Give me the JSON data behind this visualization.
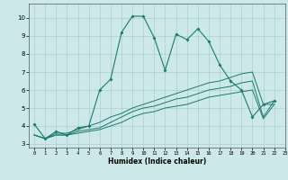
{
  "title": "",
  "xlabel": "Humidex (Indice chaleur)",
  "background_color": "#cce8e8",
  "grid_color": "#aacfcf",
  "line_color": "#1a7a6e",
  "xlim": [
    -0.5,
    23
  ],
  "ylim": [
    2.8,
    10.8
  ],
  "xticks": [
    0,
    1,
    2,
    3,
    4,
    5,
    6,
    7,
    8,
    9,
    10,
    11,
    12,
    13,
    14,
    15,
    16,
    17,
    18,
    19,
    20,
    21,
    22,
    23
  ],
  "yticks": [
    3,
    4,
    5,
    6,
    7,
    8,
    9,
    10
  ],
  "series1_x": [
    0,
    1,
    2,
    3,
    4,
    5,
    6,
    7,
    8,
    9,
    10,
    11,
    12,
    13,
    14,
    15,
    16,
    17,
    18,
    19,
    20,
    21,
    22
  ],
  "series1_y": [
    4.1,
    3.3,
    3.7,
    3.5,
    3.9,
    4.0,
    6.0,
    6.6,
    9.2,
    10.1,
    10.1,
    8.9,
    7.1,
    9.1,
    8.8,
    9.4,
    8.7,
    7.4,
    6.5,
    6.0,
    4.5,
    5.2,
    5.4
  ],
  "series2_x": [
    0,
    1,
    2,
    3,
    4,
    5,
    6,
    7,
    8,
    9,
    10,
    11,
    12,
    13,
    14,
    15,
    16,
    17,
    18,
    19,
    20,
    21,
    22
  ],
  "series2_y": [
    3.5,
    3.3,
    3.6,
    3.6,
    3.8,
    4.0,
    4.2,
    4.5,
    4.7,
    5.0,
    5.2,
    5.4,
    5.6,
    5.8,
    6.0,
    6.2,
    6.4,
    6.5,
    6.7,
    6.9,
    7.0,
    5.2,
    5.2
  ],
  "series3_x": [
    0,
    1,
    2,
    3,
    4,
    5,
    6,
    7,
    8,
    9,
    10,
    11,
    12,
    13,
    14,
    15,
    16,
    17,
    18,
    19,
    20,
    21,
    22
  ],
  "series3_y": [
    3.5,
    3.3,
    3.5,
    3.5,
    3.7,
    3.8,
    3.9,
    4.2,
    4.5,
    4.8,
    5.0,
    5.1,
    5.3,
    5.5,
    5.6,
    5.8,
    6.0,
    6.1,
    6.2,
    6.4,
    6.5,
    4.5,
    5.4
  ],
  "series4_x": [
    0,
    1,
    2,
    3,
    4,
    5,
    6,
    7,
    8,
    9,
    10,
    11,
    12,
    13,
    14,
    15,
    16,
    17,
    18,
    19,
    20,
    21,
    22
  ],
  "series4_y": [
    3.5,
    3.3,
    3.5,
    3.5,
    3.6,
    3.7,
    3.8,
    4.0,
    4.2,
    4.5,
    4.7,
    4.8,
    5.0,
    5.1,
    5.2,
    5.4,
    5.6,
    5.7,
    5.8,
    5.9,
    6.0,
    4.4,
    5.2
  ]
}
